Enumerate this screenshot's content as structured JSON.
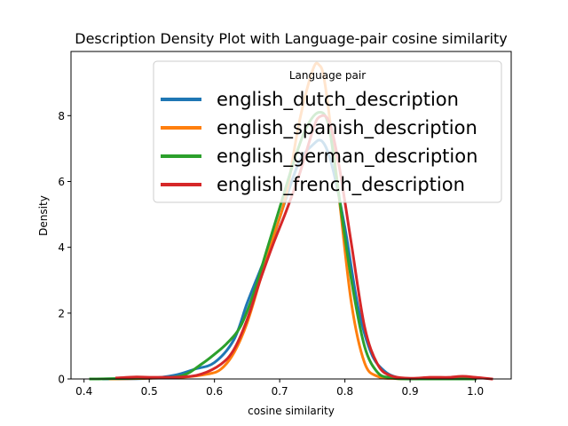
{
  "chart_data": {
    "type": "line",
    "title": "Description Density Plot with Language-pair cosine similarity",
    "xlabel": "cosine similarity",
    "ylabel": "Density",
    "xlim": [
      0.38,
      1.055
    ],
    "ylim": [
      0,
      9.95
    ],
    "xticks": [
      0.4,
      0.5,
      0.6,
      0.7,
      0.8,
      0.9,
      1.0
    ],
    "xtick_labels": [
      "0.4",
      "0.5",
      "0.6",
      "0.7",
      "0.8",
      "0.9",
      "1.0"
    ],
    "yticks": [
      0,
      2,
      4,
      6,
      8
    ],
    "ytick_labels": [
      "0",
      "2",
      "4",
      "6",
      "8"
    ],
    "grid": false,
    "legend": {
      "title": "Language pair",
      "placement": "top-right"
    },
    "series": [
      {
        "name": "english_dutch_description",
        "color": "#1f77b4",
        "points": [
          [
            0.43,
            0.0
          ],
          [
            0.5,
            0.02
          ],
          [
            0.54,
            0.12
          ],
          [
            0.57,
            0.3
          ],
          [
            0.6,
            0.5
          ],
          [
            0.63,
            1.2
          ],
          [
            0.65,
            2.3
          ],
          [
            0.67,
            3.3
          ],
          [
            0.69,
            4.3
          ],
          [
            0.71,
            5.5
          ],
          [
            0.73,
            6.6
          ],
          [
            0.75,
            7.1
          ],
          [
            0.765,
            7.22
          ],
          [
            0.78,
            6.5
          ],
          [
            0.8,
            4.6
          ],
          [
            0.82,
            2.2
          ],
          [
            0.84,
            0.8
          ],
          [
            0.86,
            0.25
          ],
          [
            0.88,
            0.05
          ],
          [
            0.9,
            0.01
          ],
          [
            0.95,
            0.0
          ],
          [
            1.0,
            0.0
          ]
        ]
      },
      {
        "name": "english_spanish_description",
        "color": "#ff7f0e",
        "points": [
          [
            0.44,
            0.0
          ],
          [
            0.5,
            0.02
          ],
          [
            0.55,
            0.05
          ],
          [
            0.59,
            0.15
          ],
          [
            0.61,
            0.3
          ],
          [
            0.63,
            0.8
          ],
          [
            0.65,
            1.7
          ],
          [
            0.67,
            3.0
          ],
          [
            0.69,
            4.3
          ],
          [
            0.71,
            5.6
          ],
          [
            0.73,
            7.8
          ],
          [
            0.75,
            9.35
          ],
          [
            0.76,
            9.55
          ],
          [
            0.77,
            8.9
          ],
          [
            0.79,
            5.7
          ],
          [
            0.81,
            2.3
          ],
          [
            0.83,
            0.5
          ],
          [
            0.85,
            0.08
          ],
          [
            0.88,
            0.01
          ],
          [
            0.95,
            0.0
          ],
          [
            1.0,
            0.0
          ]
        ]
      },
      {
        "name": "english_german_description",
        "color": "#2ca02c",
        "points": [
          [
            0.41,
            0.0
          ],
          [
            0.5,
            0.03
          ],
          [
            0.55,
            0.1
          ],
          [
            0.58,
            0.45
          ],
          [
            0.6,
            0.75
          ],
          [
            0.62,
            1.1
          ],
          [
            0.64,
            1.6
          ],
          [
            0.66,
            2.6
          ],
          [
            0.68,
            3.9
          ],
          [
            0.7,
            5.2
          ],
          [
            0.72,
            6.5
          ],
          [
            0.74,
            7.6
          ],
          [
            0.76,
            8.1
          ],
          [
            0.775,
            7.7
          ],
          [
            0.79,
            5.7
          ],
          [
            0.81,
            3.0
          ],
          [
            0.83,
            1.0
          ],
          [
            0.85,
            0.2
          ],
          [
            0.87,
            0.04
          ],
          [
            0.9,
            0.0
          ],
          [
            1.0,
            0.0
          ]
        ]
      },
      {
        "name": "english_french_description",
        "color": "#d62728",
        "points": [
          [
            0.45,
            0.03
          ],
          [
            0.48,
            0.06
          ],
          [
            0.5,
            0.05
          ],
          [
            0.55,
            0.06
          ],
          [
            0.58,
            0.15
          ],
          [
            0.61,
            0.45
          ],
          [
            0.63,
            0.9
          ],
          [
            0.65,
            1.8
          ],
          [
            0.67,
            3.0
          ],
          [
            0.69,
            4.1
          ],
          [
            0.71,
            5.1
          ],
          [
            0.73,
            6.2
          ],
          [
            0.75,
            7.5
          ],
          [
            0.76,
            7.95
          ],
          [
            0.775,
            7.85
          ],
          [
            0.79,
            6.6
          ],
          [
            0.81,
            4.1
          ],
          [
            0.83,
            1.6
          ],
          [
            0.85,
            0.45
          ],
          [
            0.87,
            0.1
          ],
          [
            0.9,
            0.02
          ],
          [
            0.93,
            0.05
          ],
          [
            0.96,
            0.05
          ],
          [
            0.98,
            0.08
          ],
          [
            1.0,
            0.05
          ],
          [
            1.025,
            0.0
          ]
        ]
      }
    ]
  }
}
